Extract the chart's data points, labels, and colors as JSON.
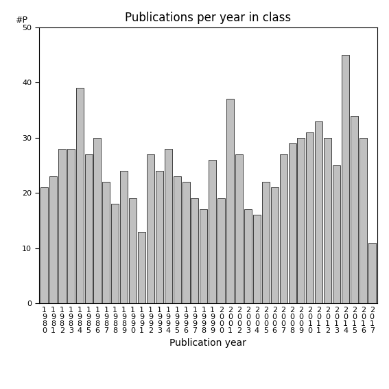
{
  "title": "Publications per year in class",
  "xlabel": "Publication year",
  "ylabel_label": "#P",
  "years": [
    1980,
    1981,
    1982,
    1983,
    1984,
    1985,
    1986,
    1987,
    1988,
    1989,
    1990,
    1991,
    1992,
    1993,
    1994,
    1995,
    1996,
    1997,
    1998,
    1999,
    2000,
    2001,
    2002,
    2003,
    2004,
    2005,
    2006,
    2007,
    2008,
    2009,
    2010,
    2011,
    2012,
    2013,
    2014,
    2015,
    2016,
    2017
  ],
  "values": [
    21,
    23,
    28,
    28,
    39,
    27,
    30,
    22,
    18,
    24,
    19,
    13,
    27,
    24,
    28,
    23,
    22,
    19,
    17,
    26,
    19,
    37,
    27,
    17,
    16,
    22,
    21,
    27,
    29,
    30,
    31,
    33,
    30,
    25,
    45,
    34,
    30,
    11
  ],
  "bar_color": "#c0c0c0",
  "bar_edge_color": "#000000",
  "ylim": [
    0,
    50
  ],
  "yticks": [
    0,
    10,
    20,
    30,
    40,
    50
  ],
  "background_color": "#ffffff",
  "title_fontsize": 12,
  "axis_label_fontsize": 10,
  "tick_fontsize": 8,
  "ylabel_fontsize": 9
}
